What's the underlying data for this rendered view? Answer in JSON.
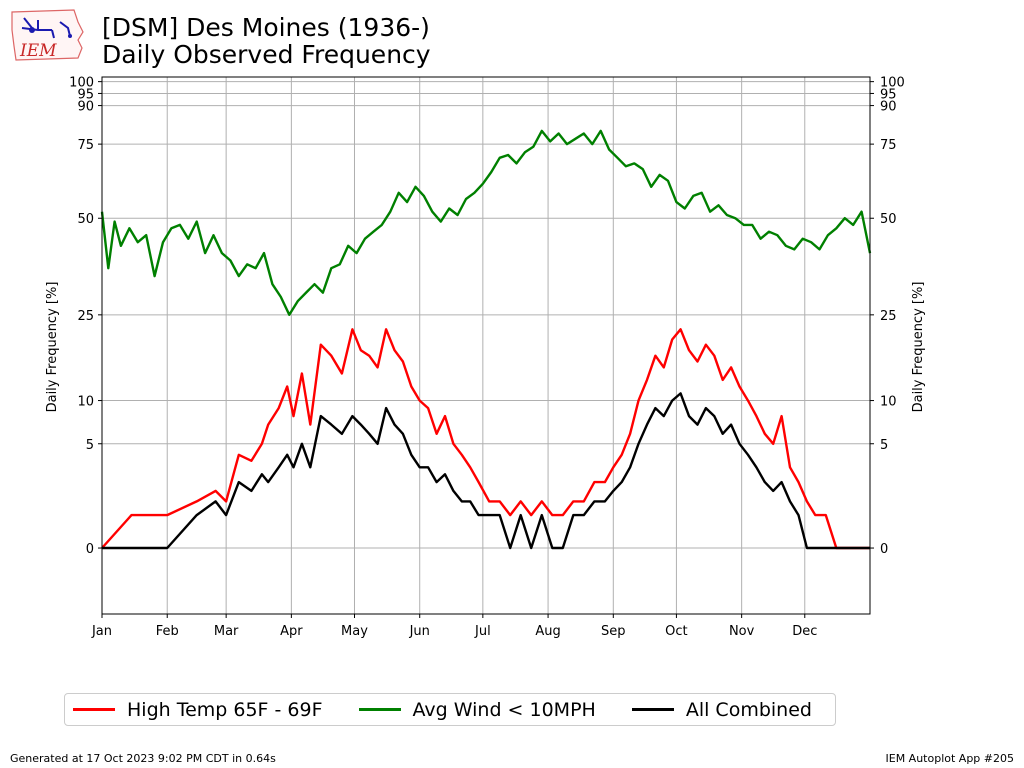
{
  "header": {
    "title_line1": "[DSM] Des Moines (1936-)",
    "title_line2": "Daily Observed Frequency",
    "logo_text": "IEM"
  },
  "footer": {
    "left": "Generated at 17 Oct 2023 9:02 PM CDT in 0.64s",
    "right": "IEM Autoplot App #205"
  },
  "chart_data": {
    "type": "line",
    "xlabel": "",
    "ylabel": "Daily Frequency [%]",
    "x_ticks": [
      "Jan",
      "Feb",
      "Mar",
      "Apr",
      "May",
      "Jun",
      "Jul",
      "Aug",
      "Sep",
      "Oct",
      "Nov",
      "Dec"
    ],
    "y_ticks": [
      0,
      5,
      10,
      25,
      50,
      75,
      90,
      95,
      100
    ],
    "y_scale": "sqrt",
    "ylim": [
      -2,
      102
    ],
    "xlim": [
      1,
      366
    ],
    "grid": true,
    "legend_position": "bottom",
    "series_colors": [
      "#ff0000",
      "#008000",
      "#000000"
    ],
    "series": [
      {
        "name": "High Temp 65F - 69F",
        "color": "#ff0000",
        "x": [
          1,
          15,
          32,
          46,
          55,
          60,
          66,
          72,
          77,
          80,
          85,
          89,
          92,
          96,
          100,
          105,
          110,
          115,
          120,
          124,
          128,
          132,
          136,
          140,
          144,
          148,
          152,
          156,
          160,
          164,
          168,
          172,
          176,
          180,
          185,
          190,
          195,
          200,
          205,
          210,
          215,
          220,
          225,
          230,
          235,
          240,
          244,
          248,
          252,
          256,
          260,
          264,
          268,
          272,
          276,
          280,
          284,
          288,
          292,
          296,
          300,
          304,
          308,
          312,
          316,
          320,
          324,
          328,
          332,
          336,
          340,
          345,
          350,
          355,
          360,
          366
        ],
        "values": [
          0,
          0.5,
          0.5,
          1,
          1.5,
          1,
          4,
          3.5,
          5,
          7,
          9,
          12,
          8,
          14,
          7,
          19,
          17,
          14,
          22,
          18,
          17,
          15,
          22,
          18,
          16,
          12,
          10,
          9,
          6,
          8,
          5,
          4,
          3,
          2,
          1,
          1,
          0.5,
          1,
          0.5,
          1,
          0.5,
          0.5,
          1,
          1,
          2,
          2,
          3,
          4,
          6,
          10,
          13,
          17,
          15,
          20,
          22,
          18,
          16,
          19,
          17,
          13,
          15,
          12,
          10,
          8,
          6,
          5,
          8,
          3,
          2,
          1,
          0.5,
          0.5,
          0,
          0,
          0,
          0
        ]
      },
      {
        "name": "Avg Wind < 10MPH",
        "color": "#008000",
        "x": [
          1,
          4,
          7,
          10,
          14,
          18,
          22,
          26,
          30,
          34,
          38,
          42,
          46,
          50,
          54,
          58,
          62,
          66,
          70,
          74,
          78,
          82,
          86,
          90,
          94,
          98,
          102,
          106,
          110,
          114,
          118,
          122,
          126,
          130,
          134,
          138,
          142,
          146,
          150,
          154,
          158,
          162,
          166,
          170,
          174,
          178,
          182,
          186,
          190,
          194,
          198,
          202,
          206,
          210,
          214,
          218,
          222,
          226,
          230,
          234,
          238,
          242,
          246,
          250,
          254,
          258,
          262,
          266,
          270,
          274,
          278,
          282,
          286,
          290,
          294,
          298,
          302,
          306,
          310,
          314,
          318,
          322,
          326,
          330,
          334,
          338,
          342,
          346,
          350,
          354,
          358,
          362,
          366
        ],
        "values": [
          52,
          36,
          49,
          42,
          47,
          43,
          45,
          34,
          43,
          47,
          48,
          44,
          49,
          40,
          45,
          40,
          38,
          34,
          37,
          36,
          40,
          32,
          29,
          25,
          28,
          30,
          32,
          30,
          36,
          37,
          42,
          40,
          44,
          46,
          48,
          52,
          58,
          55,
          60,
          57,
          52,
          49,
          53,
          51,
          56,
          58,
          61,
          65,
          70,
          71,
          68,
          72,
          74,
          80,
          76,
          79,
          75,
          77,
          79,
          75,
          80,
          73,
          70,
          67,
          68,
          66,
          60,
          64,
          62,
          55,
          53,
          57,
          58,
          52,
          54,
          51,
          50,
          48,
          48,
          44,
          46,
          45,
          42,
          41,
          44,
          43,
          41,
          45,
          47,
          50,
          48,
          52,
          40
        ]
      },
      {
        "name": "All Combined",
        "color": "#000000",
        "x": [
          1,
          15,
          32,
          46,
          55,
          60,
          66,
          72,
          77,
          80,
          85,
          89,
          92,
          96,
          100,
          105,
          110,
          115,
          120,
          124,
          128,
          132,
          136,
          140,
          144,
          148,
          152,
          156,
          160,
          164,
          168,
          172,
          176,
          180,
          185,
          190,
          195,
          200,
          205,
          210,
          215,
          220,
          225,
          230,
          235,
          240,
          244,
          248,
          252,
          256,
          260,
          264,
          268,
          272,
          276,
          280,
          284,
          288,
          292,
          296,
          300,
          304,
          308,
          312,
          316,
          320,
          324,
          328,
          332,
          336,
          340,
          345,
          350,
          355,
          360,
          366
        ],
        "values": [
          0,
          0,
          0,
          0.5,
          1,
          0.5,
          2,
          1.5,
          2.5,
          2,
          3,
          4,
          3,
          5,
          3,
          8,
          7,
          6,
          8,
          7,
          6,
          5,
          9,
          7,
          6,
          4,
          3,
          3,
          2,
          2.5,
          1.5,
          1,
          1,
          0.5,
          0.5,
          0.5,
          0,
          0.5,
          0,
          0.5,
          0,
          0,
          0.5,
          0.5,
          1,
          1,
          1.5,
          2,
          3,
          5,
          7,
          9,
          8,
          10,
          11,
          8,
          7,
          9,
          8,
          6,
          7,
          5,
          4,
          3,
          2,
          1.5,
          2,
          1,
          0.5,
          0,
          0,
          0,
          0,
          0,
          0,
          0
        ]
      }
    ]
  }
}
